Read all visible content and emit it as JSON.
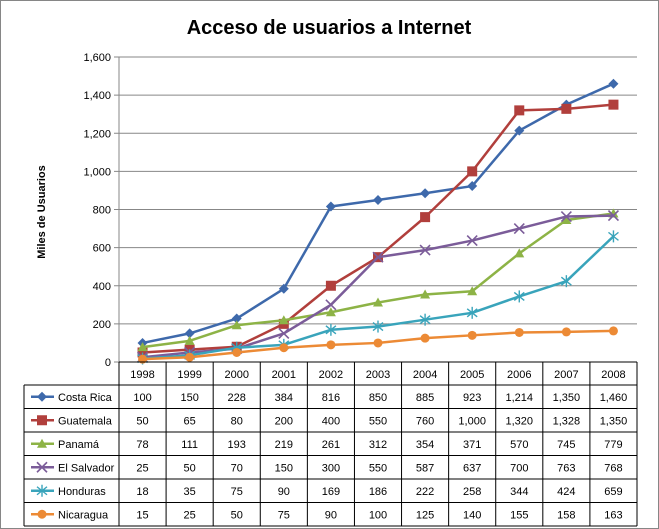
{
  "chart_data": {
    "type": "line",
    "title": "Acceso de usuarios a Internet",
    "xlabel": "",
    "ylabel": "Miles de Usuarios",
    "ylim": [
      0,
      1600
    ],
    "yticks": [
      "0",
      "200",
      "400",
      "600",
      "800",
      "1,000",
      "1,200",
      "1,400",
      "1,600"
    ],
    "ytick_values": [
      0,
      200,
      400,
      600,
      800,
      1000,
      1200,
      1400,
      1600
    ],
    "grid": true,
    "legend": "data-table-left",
    "categories": [
      "1998",
      "1999",
      "2000",
      "2001",
      "2002",
      "2003",
      "2004",
      "2005",
      "2006",
      "2007",
      "2008"
    ],
    "series": [
      {
        "name": "Costa Rica",
        "color": "#3e69ab",
        "marker": "diamond",
        "values": [
          100,
          150,
          228,
          384,
          816,
          850,
          885,
          923,
          1214,
          1350,
          1460
        ],
        "labels": [
          "100",
          "150",
          "228",
          "384",
          "816",
          "850",
          "885",
          "923",
          "1,214",
          "1,350",
          "1,460"
        ]
      },
      {
        "name": "Guatemala",
        "color": "#b13f3c",
        "marker": "square",
        "values": [
          50,
          65,
          80,
          200,
          400,
          550,
          760,
          1000,
          1320,
          1328,
          1350
        ],
        "labels": [
          "50",
          "65",
          "80",
          "200",
          "400",
          "550",
          "760",
          "1,000",
          "1,320",
          "1,328",
          "1,350"
        ]
      },
      {
        "name": "Panamá",
        "color": "#8db346",
        "marker": "triangle",
        "values": [
          78,
          111,
          193,
          219,
          261,
          312,
          354,
          371,
          570,
          745,
          779
        ],
        "labels": [
          "78",
          "111",
          "193",
          "219",
          "261",
          "312",
          "354",
          "371",
          "570",
          "745",
          "779"
        ]
      },
      {
        "name": "El Salvador",
        "color": "#7b5c99",
        "marker": "x",
        "values": [
          25,
          50,
          70,
          150,
          300,
          550,
          587,
          637,
          700,
          763,
          768
        ],
        "labels": [
          "25",
          "50",
          "70",
          "150",
          "300",
          "550",
          "587",
          "637",
          "700",
          "763",
          "768"
        ]
      },
      {
        "name": "Honduras",
        "color": "#39a4bb",
        "marker": "star",
        "values": [
          18,
          35,
          75,
          90,
          169,
          186,
          222,
          258,
          344,
          424,
          659
        ],
        "labels": [
          "18",
          "35",
          "75",
          "90",
          "169",
          "186",
          "222",
          "258",
          "344",
          "424",
          "659"
        ]
      },
      {
        "name": "Nicaragua",
        "color": "#ec8a35",
        "marker": "circle",
        "values": [
          15,
          25,
          50,
          75,
          90,
          100,
          125,
          140,
          155,
          158,
          163
        ],
        "labels": [
          "15",
          "25",
          "50",
          "75",
          "90",
          "100",
          "125",
          "140",
          "155",
          "158",
          "163"
        ]
      }
    ]
  }
}
